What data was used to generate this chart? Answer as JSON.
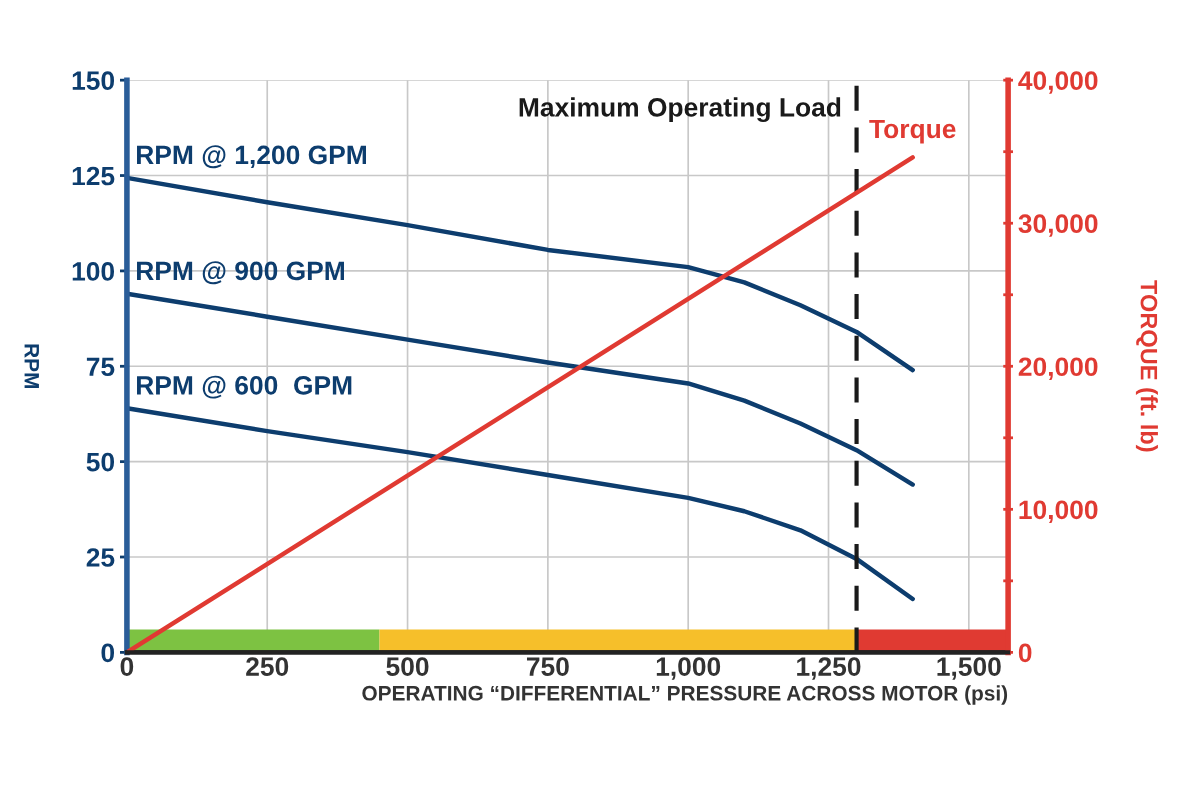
{
  "chart_data": {
    "type": "line",
    "xlabel": "OPERATING “DIFFERENTIAL” PRESSURE ACROSS MOTOR (psi)",
    "ylabel": "RPM",
    "y2label": "TORQUE (ft. lb)",
    "x": [
      0,
      250,
      500,
      750,
      1000,
      1100,
      1200,
      1300,
      1400
    ],
    "series": [
      {
        "name": "RPM @ 1,200 GPM",
        "color": "#0d3d6e",
        "values": [
          124.4,
          118,
          112,
          105.5,
          101,
          97,
          91,
          84,
          74
        ]
      },
      {
        "name": "RPM @ 900 GPM",
        "color": "#0d3d6e",
        "values": [
          94,
          88,
          82,
          76,
          70.5,
          66,
          60,
          53,
          44
        ]
      },
      {
        "name": "RPM @ 600  GPM",
        "color": "#0d3d6e",
        "values": [
          64,
          58,
          52.5,
          46.5,
          40.5,
          37,
          32,
          24.5,
          14
        ]
      },
      {
        "name": "Torque",
        "color": "#e03a32",
        "axis": "y2",
        "x": [
          0,
          1400
        ],
        "values": [
          0,
          34600
        ]
      }
    ],
    "xlim": [
      0,
      1570
    ],
    "xticks": [
      0,
      250,
      500,
      750,
      {
        "value": 1000,
        "label": "1,000"
      },
      {
        "value": 1250,
        "label": "1,250"
      },
      {
        "value": 1500,
        "label": "1,500"
      }
    ],
    "ylim": [
      0,
      150
    ],
    "yticks": [
      0,
      25,
      50,
      75,
      100,
      125,
      150
    ],
    "y2lim": [
      0,
      40000
    ],
    "y2ticks": [
      0,
      {
        "value": 5000,
        "label": null
      },
      {
        "value": 10000,
        "label": "10,000"
      },
      {
        "value": 15000,
        "label": null
      },
      {
        "value": 20000,
        "label": "20,000"
      },
      {
        "value": 25000,
        "label": null
      },
      {
        "value": 30000,
        "label": "30,000"
      },
      {
        "value": 35000,
        "label": null
      },
      {
        "value": 40000,
        "label": "40,000"
      }
    ],
    "ref_lines": [
      {
        "axis": "x",
        "value": 1300,
        "label": "Maximum Operating Load",
        "color": "#1a1a1a",
        "line_style": "dashed"
      }
    ],
    "bands": [
      {
        "axis": "x",
        "from": 0,
        "to": 450,
        "color": "#7dc242"
      },
      {
        "axis": "x",
        "from": 450,
        "to": 1300,
        "color": "#f6bf2a"
      },
      {
        "axis": "x",
        "from": 1300,
        "to": 1570,
        "color": "#e03a32"
      }
    ],
    "grid": true,
    "marker": "none",
    "line_style": "solid"
  }
}
